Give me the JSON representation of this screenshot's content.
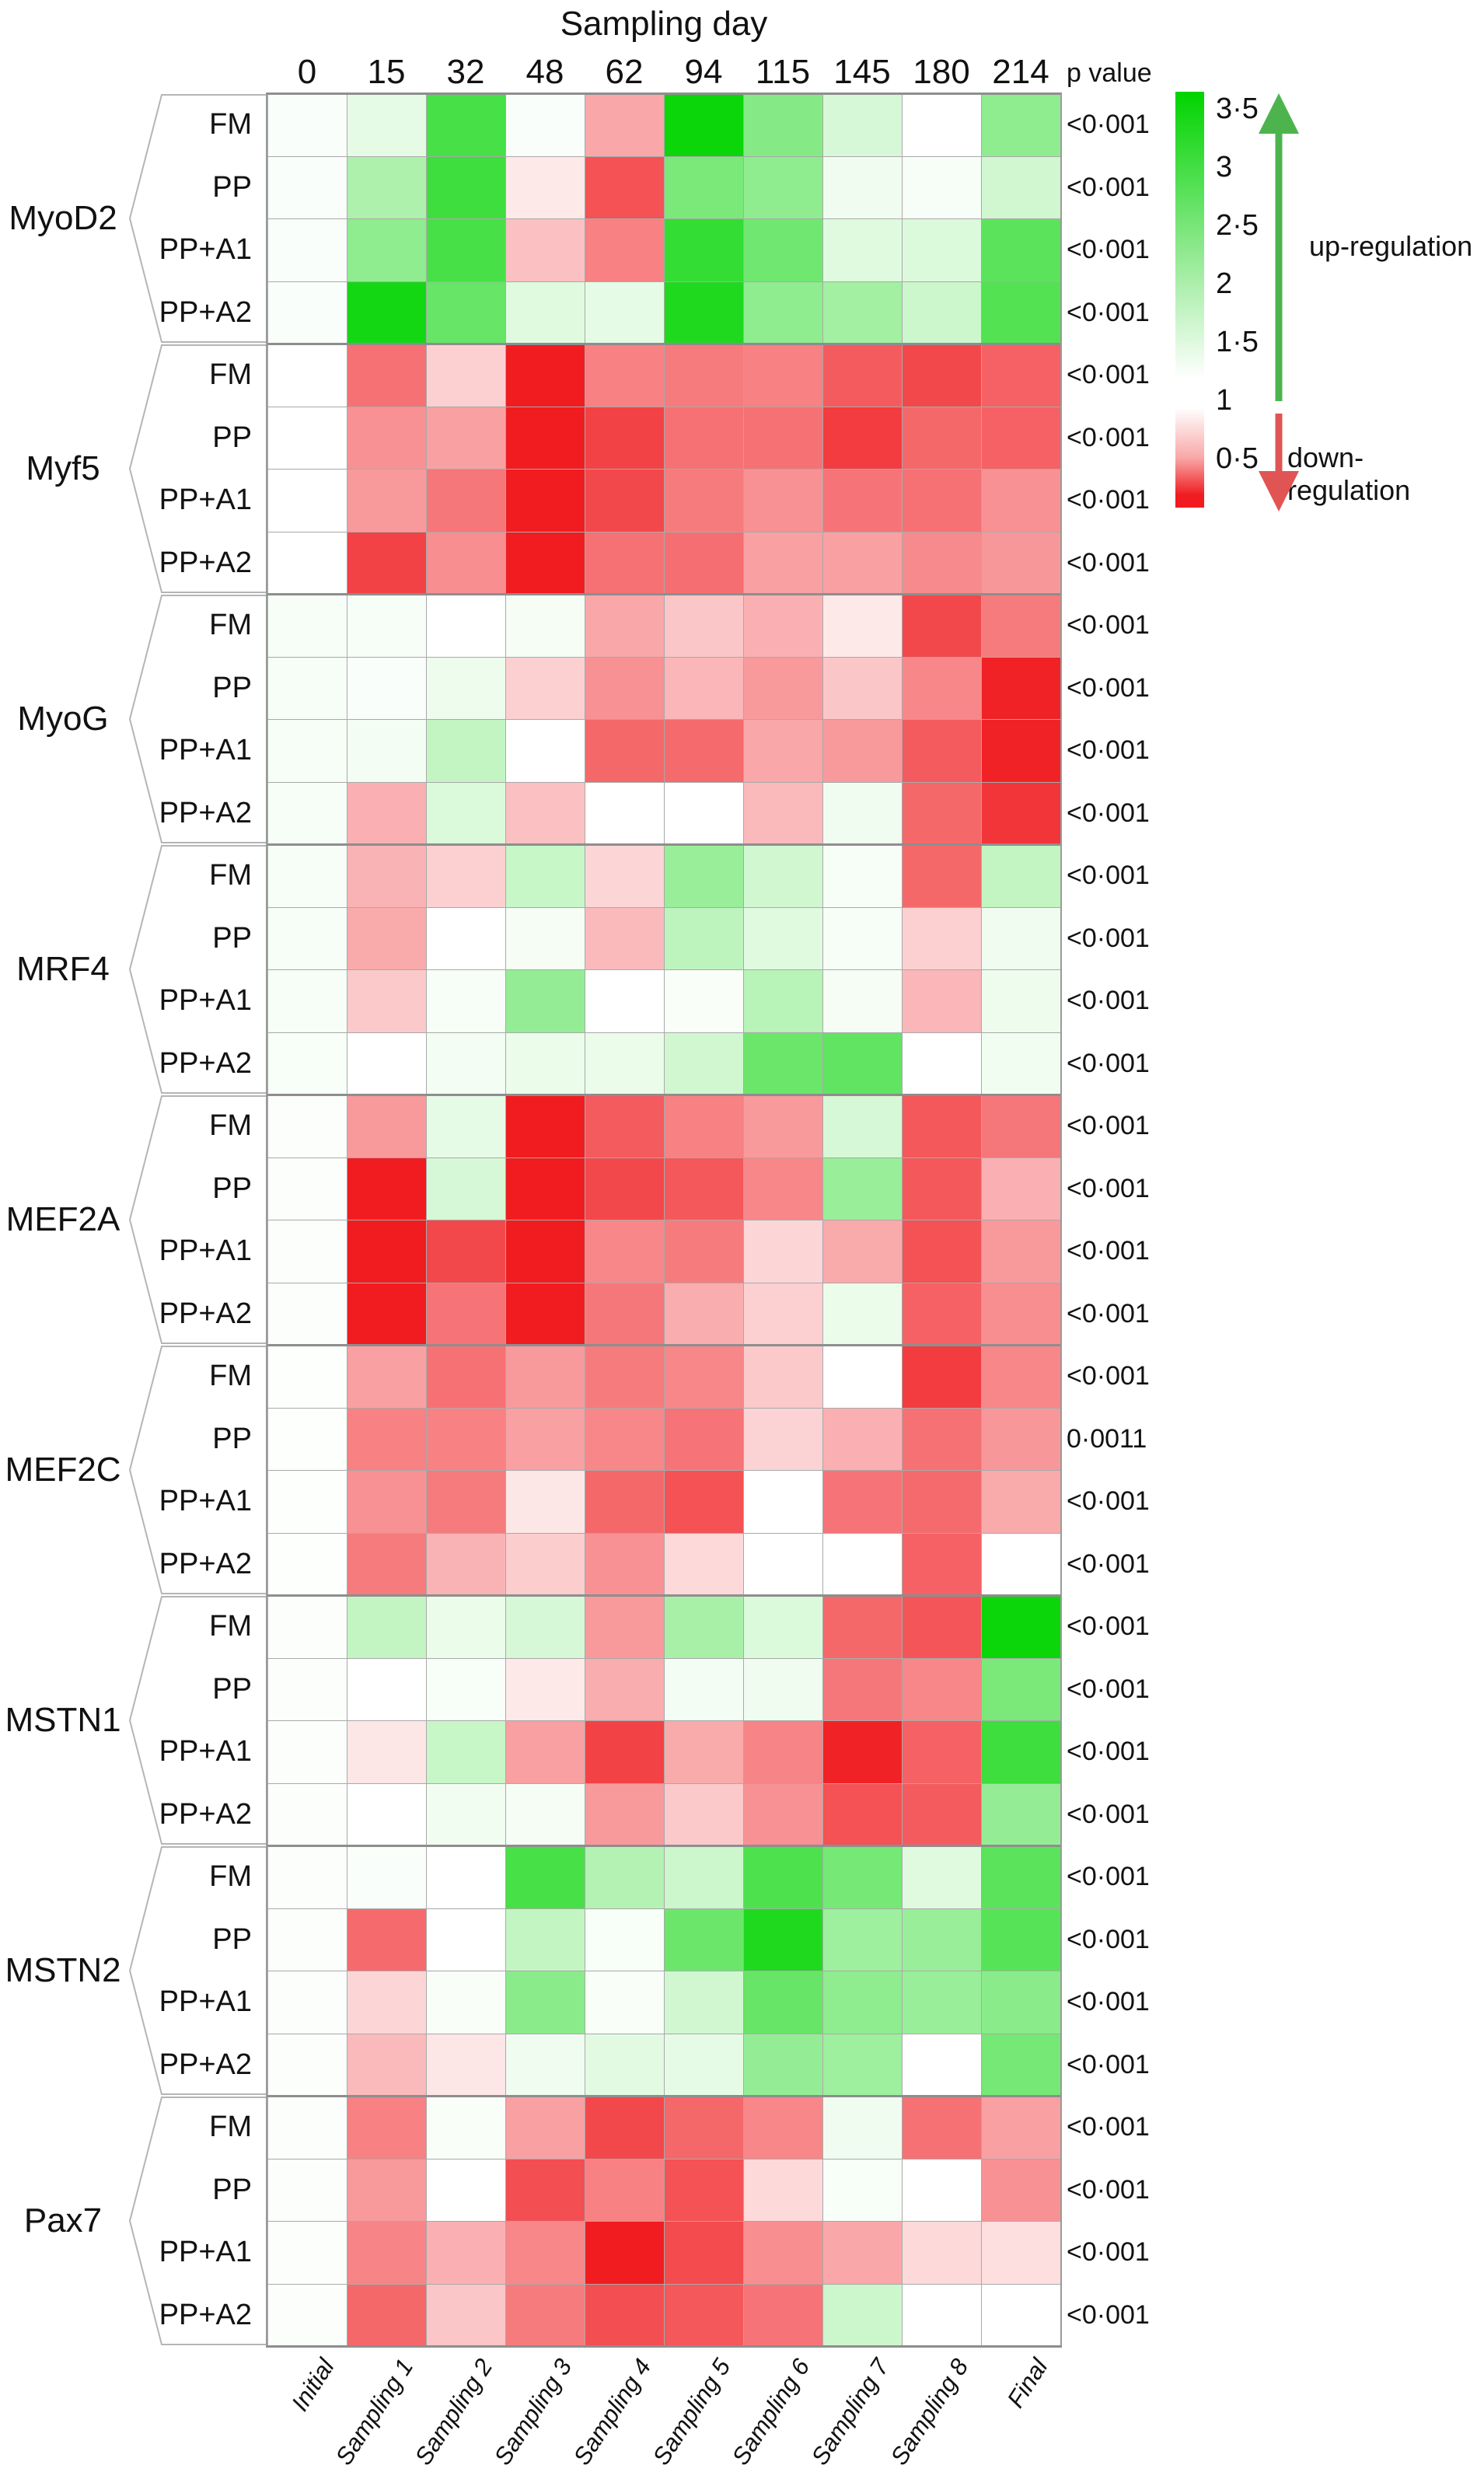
{
  "figure": {
    "title": "Sampling day",
    "p_value_header": "p value",
    "legend": {
      "up_label": "up-regulation",
      "down_label": "down-regulation",
      "up_arrow_color": "#4db44d",
      "down_arrow_color": "#e05454"
    }
  },
  "chart_data": {
    "type": "heatmap",
    "title": "Sampling day",
    "x_top_labels": [
      "0",
      "15",
      "32",
      "48",
      "62",
      "94",
      "115",
      "145",
      "180",
      "214"
    ],
    "x_bottom_labels": [
      "Initial",
      "Sampling 1",
      "Sampling 2",
      "Sampling 3",
      "Sampling 4",
      "Sampling 5",
      "Sampling 6",
      "Sampling 7",
      "Sampling 8",
      "Final"
    ],
    "colorbar": {
      "tick_labels": [
        "3·5",
        "3",
        "2·5",
        "2",
        "1·5",
        "1",
        "0·5"
      ],
      "tick_values": [
        3.5,
        3,
        2.5,
        2,
        1.5,
        1,
        0.5
      ],
      "value_at_white": 1,
      "top_value": 3.6,
      "bottom_value": 0.1,
      "top_color": "#00d400",
      "white_color": "#ffffff",
      "bottom_color": "#f01c20"
    },
    "genes": [
      {
        "name": "MyoD2",
        "rows": [
          {
            "label": "FM",
            "p": "<0·001",
            "values": [
              1.05,
              1.25,
              2.8,
              1.05,
              0.72,
              3.4,
              2.2,
              1.4,
              1.0,
              2.1
            ]
          },
          {
            "label": "PP",
            "p": "<0·001",
            "values": [
              1.05,
              1.8,
              2.9,
              0.93,
              0.45,
              2.3,
              2.1,
              1.15,
              1.08,
              1.45
            ]
          },
          {
            "label": "PP+A1",
            "p": "<0·001",
            "values": [
              1.05,
              2.1,
              2.8,
              0.8,
              0.6,
              3.0,
              2.4,
              1.3,
              1.35,
              2.6
            ]
          },
          {
            "label": "PP+A2",
            "p": "<0·001",
            "values": [
              1.05,
              3.3,
              2.5,
              1.3,
              1.25,
              3.2,
              2.1,
              1.9,
              1.5,
              2.7
            ]
          }
        ]
      },
      {
        "name": "Myf5",
        "rows": [
          {
            "label": "FM",
            "p": "<0·001",
            "values": [
              1.0,
              0.55,
              0.85,
              0.25,
              0.6,
              0.58,
              0.6,
              0.48,
              0.42,
              0.5
            ]
          },
          {
            "label": "PP",
            "p": "<0·001",
            "values": [
              1.0,
              0.65,
              0.7,
              0.22,
              0.4,
              0.55,
              0.55,
              0.38,
              0.52,
              0.5
            ]
          },
          {
            "label": "PP+A1",
            "p": "<0·001",
            "values": [
              1.0,
              0.68,
              0.57,
              0.24,
              0.42,
              0.58,
              0.65,
              0.56,
              0.55,
              0.65
            ]
          },
          {
            "label": "PP+A2",
            "p": "<0·001",
            "values": [
              1.0,
              0.4,
              0.64,
              0.2,
              0.55,
              0.54,
              0.7,
              0.7,
              0.63,
              0.67
            ]
          }
        ]
      },
      {
        "name": "MyoG",
        "rows": [
          {
            "label": "FM",
            "p": "<0·001",
            "values": [
              1.08,
              1.08,
              1.0,
              1.1,
              0.72,
              0.82,
              0.75,
              0.93,
              0.42,
              0.58
            ]
          },
          {
            "label": "PP",
            "p": "<0·001",
            "values": [
              1.08,
              1.05,
              1.18,
              0.85,
              0.65,
              0.77,
              0.68,
              0.82,
              0.62,
              0.3
            ]
          },
          {
            "label": "PP+A1",
            "p": "<0·001",
            "values": [
              1.08,
              1.12,
              1.6,
              1.0,
              0.52,
              0.53,
              0.72,
              0.68,
              0.48,
              0.3
            ]
          },
          {
            "label": "PP+A2",
            "p": "<0·001",
            "values": [
              1.08,
              0.75,
              1.35,
              0.8,
              1.0,
              1.0,
              0.78,
              1.15,
              0.52,
              0.36
            ]
          }
        ]
      },
      {
        "name": "MRF4",
        "rows": [
          {
            "label": "FM",
            "p": "<0·001",
            "values": [
              1.08,
              0.76,
              0.85,
              1.55,
              0.87,
              2.0,
              1.45,
              1.08,
              0.52,
              1.6
            ]
          },
          {
            "label": "PP",
            "p": "<0·001",
            "values": [
              1.08,
              0.73,
              1.0,
              1.1,
              0.78,
              1.65,
              1.3,
              1.08,
              0.85,
              1.15
            ]
          },
          {
            "label": "PP+A1",
            "p": "<0·001",
            "values": [
              1.08,
              0.83,
              1.08,
              2.05,
              1.0,
              1.06,
              1.7,
              1.1,
              0.77,
              1.17
            ]
          },
          {
            "label": "PP+A2",
            "p": "<0·001",
            "values": [
              1.07,
              1.0,
              1.12,
              1.2,
              1.2,
              1.45,
              2.45,
              2.55,
              1.0,
              1.13
            ]
          }
        ]
      },
      {
        "name": "MEF2A",
        "rows": [
          {
            "label": "FM",
            "p": "<0·001",
            "values": [
              1.03,
              0.68,
              1.25,
              0.22,
              0.48,
              0.6,
              0.68,
              1.4,
              0.47,
              0.57
            ]
          },
          {
            "label": "PP",
            "p": "<0·001",
            "values": [
              1.03,
              0.2,
              1.4,
              0.2,
              0.42,
              0.47,
              0.62,
              2.0,
              0.47,
              0.75
            ]
          },
          {
            "label": "PP+A1",
            "p": "<0·001",
            "values": [
              1.03,
              0.2,
              0.42,
              0.2,
              0.62,
              0.58,
              0.87,
              0.73,
              0.45,
              0.68
            ]
          },
          {
            "label": "PP+A2",
            "p": "<0·001",
            "values": [
              1.03,
              0.2,
              0.56,
              0.21,
              0.57,
              0.74,
              0.85,
              1.2,
              0.5,
              0.64
            ]
          }
        ]
      },
      {
        "name": "MEF2C",
        "rows": [
          {
            "label": "FM",
            "p": "<0·001",
            "values": [
              1.02,
              0.7,
              0.55,
              0.68,
              0.58,
              0.62,
              0.83,
              1.0,
              0.38,
              0.62
            ]
          },
          {
            "label": "PP",
            "p": "0·0011",
            "values": [
              1.02,
              0.6,
              0.6,
              0.7,
              0.62,
              0.56,
              0.86,
              0.75,
              0.55,
              0.67
            ]
          },
          {
            "label": "PP+A1",
            "p": "<0·001",
            "values": [
              1.02,
              0.65,
              0.58,
              0.92,
              0.52,
              0.45,
              1.0,
              0.56,
              0.53,
              0.73
            ]
          },
          {
            "label": "PP+A2",
            "p": "<0·001",
            "values": [
              1.02,
              0.58,
              0.76,
              0.84,
              0.65,
              0.88,
              1.0,
              1.0,
              0.5,
              1.0
            ]
          }
        ]
      },
      {
        "name": "MSTN1",
        "rows": [
          {
            "label": "FM",
            "p": "<0·001",
            "values": [
              1.03,
              1.6,
              1.2,
              1.4,
              0.68,
              1.85,
              1.35,
              0.52,
              0.46,
              3.4
            ]
          },
          {
            "label": "PP",
            "p": "<0·001",
            "values": [
              1.03,
              1.0,
              1.07,
              0.93,
              0.74,
              1.12,
              1.16,
              0.57,
              0.62,
              2.3
            ]
          },
          {
            "label": "PP+A1",
            "p": "<0·001",
            "values": [
              1.03,
              0.92,
              1.55,
              0.7,
              0.4,
              0.73,
              0.61,
              0.3,
              0.5,
              2.9
            ]
          },
          {
            "label": "PP+A2",
            "p": "<0·001",
            "values": [
              1.03,
              1.0,
              1.14,
              1.1,
              0.68,
              0.83,
              0.65,
              0.45,
              0.48,
              2.05
            ]
          }
        ]
      },
      {
        "name": "MSTN2",
        "rows": [
          {
            "label": "FM",
            "p": "<0·001",
            "values": [
              1.03,
              1.05,
              1.0,
              2.8,
              1.75,
              1.5,
              2.75,
              2.35,
              1.3,
              2.6
            ]
          },
          {
            "label": "PP",
            "p": "<0·001",
            "values": [
              1.03,
              0.53,
              1.0,
              1.6,
              1.07,
              2.45,
              3.2,
              1.95,
              2.0,
              2.65
            ]
          },
          {
            "label": "PP+A1",
            "p": "<0·001",
            "values": [
              1.03,
              0.87,
              1.06,
              2.15,
              1.06,
              1.45,
              2.5,
              2.1,
              2.0,
              2.15
            ]
          },
          {
            "label": "PP+A2",
            "p": "<0·001",
            "values": [
              1.03,
              0.78,
              0.92,
              1.15,
              1.28,
              1.25,
              2.05,
              1.95,
              1.0,
              2.35
            ]
          }
        ]
      },
      {
        "name": "Pax7",
        "rows": [
          {
            "label": "FM",
            "p": "<0·001",
            "values": [
              1.03,
              0.6,
              1.06,
              0.7,
              0.42,
              0.52,
              0.62,
              1.15,
              0.55,
              0.7
            ]
          },
          {
            "label": "PP",
            "p": "<0·001",
            "values": [
              1.03,
              0.68,
              1.0,
              0.44,
              0.6,
              0.45,
              0.88,
              1.07,
              1.0,
              0.65
            ]
          },
          {
            "label": "PP+A1",
            "p": "<0·001",
            "values": [
              1.03,
              0.61,
              0.75,
              0.62,
              0.25,
              0.43,
              0.64,
              0.72,
              0.88,
              0.9
            ]
          },
          {
            "label": "PP+A2",
            "p": "<0·001",
            "values": [
              1.03,
              0.52,
              0.82,
              0.58,
              0.44,
              0.47,
              0.56,
              1.5,
              1.0,
              1.0
            ]
          }
        ]
      }
    ]
  }
}
